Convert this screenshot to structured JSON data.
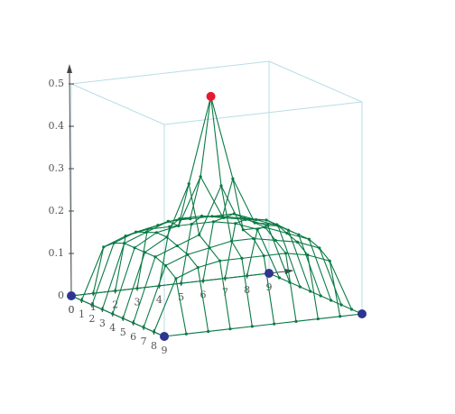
{
  "chart_data": {
    "type": "surface3d",
    "x": [
      0,
      1,
      2,
      3,
      4,
      5,
      6,
      7,
      8,
      9
    ],
    "y": [
      0,
      1,
      2,
      3,
      4,
      5,
      6,
      7,
      8,
      9
    ],
    "z": [
      [
        0,
        0,
        0,
        0,
        0,
        0,
        0,
        0,
        0,
        0
      ],
      [
        0,
        0.12,
        0.14,
        0.15,
        0.15,
        0.15,
        0.15,
        0.14,
        0.12,
        0
      ],
      [
        0,
        0.14,
        0.16,
        0.17,
        0.18,
        0.18,
        0.17,
        0.16,
        0.14,
        0
      ],
      [
        0,
        0.15,
        0.17,
        0.19,
        0.19,
        0.19,
        0.19,
        0.17,
        0.15,
        0
      ],
      [
        0,
        0.15,
        0.18,
        0.19,
        0.3,
        0.2,
        0.19,
        0.18,
        0.15,
        0
      ],
      [
        0,
        0.15,
        0.18,
        0.3,
        0.5,
        0.3,
        0.19,
        0.18,
        0.15,
        0
      ],
      [
        0,
        0.15,
        0.17,
        0.19,
        0.3,
        0.19,
        0.19,
        0.17,
        0.15,
        0
      ],
      [
        0,
        0.14,
        0.16,
        0.17,
        0.18,
        0.18,
        0.17,
        0.16,
        0.14,
        0
      ],
      [
        0,
        0.12,
        0.14,
        0.15,
        0.15,
        0.15,
        0.15,
        0.14,
        0.12,
        0
      ],
      [
        0,
        0,
        0,
        0,
        0,
        0,
        0,
        0,
        0,
        0
      ]
    ],
    "zlim": [
      0,
      0.5
    ],
    "zticks": [
      0,
      0.1,
      0.2,
      0.3,
      0.4,
      0.5
    ],
    "color": "#0a7a45",
    "box_color": "#b8dde6",
    "peak_color": "#e8192c",
    "corner_color": "#2d3590"
  }
}
